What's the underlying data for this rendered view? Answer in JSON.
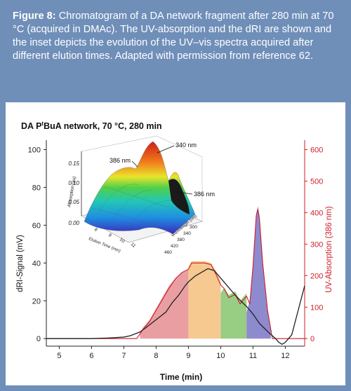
{
  "caption": {
    "label": "Figure 8:",
    "text": "Chromatogram of a DA network fragment after 280 min at 70 °C (acquired in DMAc). The UV-absorption and the dRI are shown and the inset depicts the evolution of the UV–vis spectra acquired after different elution times. Adapted with permission from reference 62."
  },
  "chart_data": {
    "type": "line",
    "title": "DA PtBuA network, 70 °C, 280 min",
    "title_main": "DA P",
    "title_sup": "t",
    "title_rest": "BuA network, 70 °C, 280 min",
    "xlabel": "Time (min)",
    "ylabel_left": "dRI-Signal (mV)",
    "ylabel_right": "UV-Absorption (386 nm)",
    "xlim": [
      4.6,
      12.6
    ],
    "ylim_left": [
      -4,
      105
    ],
    "ylim_right": [
      -24,
      630
    ],
    "x_ticks": [
      "5",
      "6",
      "7",
      "8",
      "9",
      "10",
      "11",
      "12"
    ],
    "y_left_ticks": [
      "0",
      "20",
      "40",
      "60",
      "80",
      "100"
    ],
    "y_right_ticks": [
      "0",
      "100",
      "200",
      "300",
      "400",
      "500",
      "600"
    ],
    "colors": {
      "dri": "#222222",
      "uv": "#cc1e2a",
      "right_axis": "#cc1e2a",
      "fractions": [
        "#e58e92",
        "#f5c07e",
        "#86c46e",
        "#7a76c6"
      ]
    },
    "fractions": [
      {
        "x": [
          7.5,
          7.6,
          7.8,
          8.0,
          8.2,
          8.4,
          8.6,
          8.8,
          9.0
        ],
        "y": [
          3,
          6,
          10,
          16,
          22,
          28,
          32,
          35,
          37
        ]
      },
      {
        "x": [
          9.0,
          9.1,
          9.3,
          9.5,
          9.7,
          9.85,
          10.0
        ],
        "y": [
          38,
          41,
          41,
          41,
          40,
          36,
          30
        ]
      },
      {
        "x": [
          10.0,
          10.1,
          10.25,
          10.45,
          10.6,
          10.8
        ],
        "y": [
          24,
          27,
          23,
          25,
          20,
          24
        ]
      },
      {
        "x": [
          10.8,
          10.9,
          11.0,
          11.1,
          11.15,
          11.2,
          11.3,
          11.45,
          11.55
        ],
        "y": [
          14,
          20,
          39,
          66,
          70,
          65,
          40,
          15,
          5
        ]
      }
    ],
    "series": [
      {
        "name": "UV-Absorption (386 nm)",
        "axis": "right",
        "x": [
          4.6,
          7.4,
          7.6,
          7.8,
          8.0,
          8.2,
          8.4,
          8.6,
          8.8,
          9.0,
          9.1,
          9.3,
          9.5,
          9.7,
          9.85,
          10.0,
          10.1,
          10.25,
          10.45,
          10.6,
          10.8,
          10.9,
          11.0,
          11.1,
          11.15,
          11.2,
          11.3,
          11.45,
          11.6,
          12.0,
          12.3,
          12.6
        ],
        "y": [
          0,
          0,
          30,
          55,
          90,
          125,
          160,
          190,
          210,
          220,
          240,
          240,
          240,
          235,
          205,
          170,
          160,
          130,
          140,
          110,
          135,
          110,
          230,
          390,
          410,
          380,
          240,
          90,
          0,
          0,
          0,
          0
        ]
      },
      {
        "name": "dRI-Signal",
        "axis": "left",
        "x": [
          4.6,
          5.0,
          5.5,
          6.0,
          6.5,
          7.0,
          7.2,
          7.5,
          7.7,
          8.0,
          8.3,
          8.5,
          8.7,
          8.9,
          9.0,
          9.2,
          9.4,
          9.6,
          9.8,
          10.0,
          10.2,
          10.5,
          10.8,
          11.0,
          11.2,
          11.5,
          11.7,
          11.8,
          11.9,
          12.0,
          12.2,
          12.4,
          12.6
        ],
        "y": [
          0,
          0,
          0,
          0,
          0.3,
          0.8,
          1.5,
          3.5,
          6,
          10,
          14,
          19,
          23,
          28,
          30,
          33,
          35,
          37,
          36,
          32,
          28,
          22,
          17,
          13,
          8,
          3,
          0,
          -2,
          -3,
          -2,
          2,
          15,
          28
        ]
      }
    ],
    "inset": {
      "type": "3d-surface",
      "zlabel": "Absorption (au)",
      "xlabel": "Elution Time (min)",
      "ylabel": "Wavelength (nm)",
      "z_ticks": [
        "0.00",
        "0.05",
        "0.10",
        "0.15"
      ],
      "x_ticks": [
        "8",
        "9",
        "10",
        "11"
      ],
      "y_ticks": [
        "300",
        "340",
        "380",
        "420",
        "460"
      ],
      "annotations": [
        "386 nm",
        "340 nm",
        "386 nm"
      ]
    }
  }
}
